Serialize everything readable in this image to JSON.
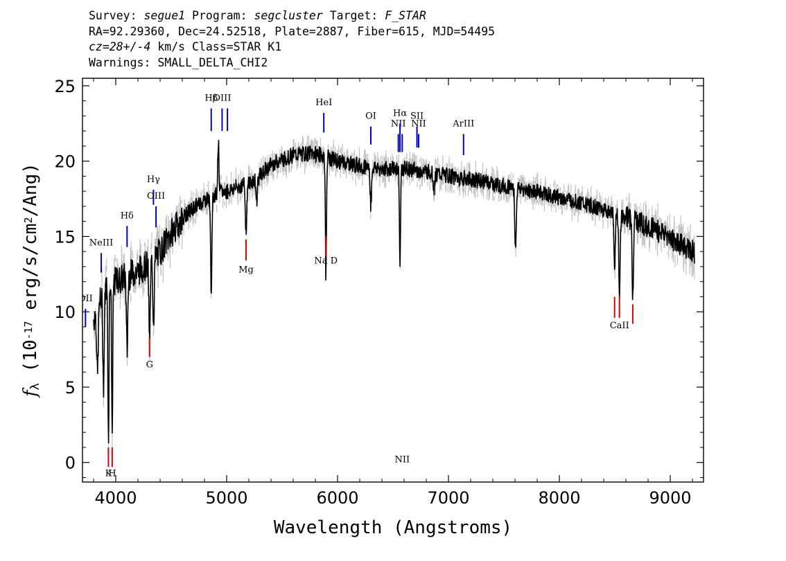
{
  "header": {
    "line1": {
      "survey_label": "Survey:",
      "survey": "segue1",
      "program_label": "Program:",
      "program": "segcluster",
      "target_label": "Target:",
      "target": "F_STAR"
    },
    "line2": "RA=92.29360, Dec=24.52518, Plate=2887, Fiber=615, MJD=54495",
    "line3": {
      "redshift": "cz=28+/-4",
      "unit_and_class": " km/s Class=STAR K1"
    },
    "line4": "Warnings: SMALL_DELTA_CHI2"
  },
  "colors": {
    "flux": "#000000",
    "error_band": "#c0c0c0",
    "emission_lines": "#0000cc",
    "absorption_lines": "#dd0000"
  },
  "chart_data": {
    "type": "line",
    "xlabel": "Wavelength (Angstroms)",
    "ylabel": "f_λ (10^-17 erg/s/cm^2/Ang)",
    "xlim": [
      3700,
      9300
    ],
    "ylim": [
      -1.3,
      25.5
    ],
    "xticks": [
      4000,
      5000,
      6000,
      7000,
      8000,
      9000
    ],
    "yticks": [
      0,
      5,
      10,
      15,
      20,
      25
    ],
    "grid": false,
    "legend": "none",
    "continuum": [
      [
        3800,
        9.5
      ],
      [
        3850,
        10.5
      ],
      [
        3900,
        11.5
      ],
      [
        3950,
        12.0
      ],
      [
        4000,
        12.0
      ],
      [
        4050,
        12.2
      ],
      [
        4100,
        12.4
      ],
      [
        4200,
        12.7
      ],
      [
        4300,
        13.2
      ],
      [
        4400,
        14.0
      ],
      [
        4500,
        15.2
      ],
      [
        4600,
        16.2
      ],
      [
        4700,
        16.9
      ],
      [
        4800,
        17.4
      ],
      [
        4900,
        17.8
      ],
      [
        5000,
        18.0
      ],
      [
        5100,
        18.3
      ],
      [
        5200,
        18.5
      ],
      [
        5300,
        19.0
      ],
      [
        5400,
        19.8
      ],
      [
        5500,
        20.1
      ],
      [
        5600,
        20.4
      ],
      [
        5700,
        20.5
      ],
      [
        5800,
        20.5
      ],
      [
        5900,
        20.3
      ],
      [
        6000,
        20.0
      ],
      [
        6200,
        19.7
      ],
      [
        6400,
        19.5
      ],
      [
        6600,
        19.5
      ],
      [
        6800,
        19.3
      ],
      [
        7000,
        19.0
      ],
      [
        7200,
        18.8
      ],
      [
        7400,
        18.5
      ],
      [
        7600,
        18.2
      ],
      [
        7800,
        18.0
      ],
      [
        8000,
        17.6
      ],
      [
        8200,
        17.2
      ],
      [
        8400,
        16.8
      ],
      [
        8600,
        16.3
      ],
      [
        8800,
        15.7
      ],
      [
        9000,
        14.9
      ],
      [
        9100,
        14.4
      ],
      [
        9200,
        14.0
      ]
    ],
    "absorption_features": [
      {
        "x": 3835,
        "depth": 4.5
      },
      {
        "x": 3890,
        "depth": 6.0
      },
      {
        "x": 3934,
        "depth": 10.0
      },
      {
        "x": 3968,
        "depth": 10.0
      },
      {
        "x": 4102,
        "depth": 5.0
      },
      {
        "x": 4305,
        "depth": 5.0
      },
      {
        "x": 4341,
        "depth": 4.0
      },
      {
        "x": 4861,
        "depth": 6.0
      },
      {
        "x": 5175,
        "depth": 3.0
      },
      {
        "x": 5270,
        "depth": 1.5
      },
      {
        "x": 5895,
        "depth": 8.0
      },
      {
        "x": 6300,
        "depth": 2.5
      },
      {
        "x": 6563,
        "depth": 6.5
      },
      {
        "x": 6870,
        "depth": 1.0
      },
      {
        "x": 7605,
        "depth": 4.0
      },
      {
        "x": 8498,
        "depth": 3.5
      },
      {
        "x": 8542,
        "depth": 5.0
      },
      {
        "x": 8662,
        "depth": 5.0
      },
      {
        "x": 9235,
        "depth": 3.0
      }
    ],
    "emission_features": [
      {
        "x": 4925,
        "height": 3.5
      }
    ],
    "line_markers": [
      {
        "label": "Hβ",
        "x": 4861,
        "color": "blue",
        "label_y": 24.0,
        "y0": 23.5,
        "y1": 22.0
      },
      {
        "label": "OIII",
        "x": 4959,
        "color": "blue",
        "label_y": 24.0,
        "y0": 23.5,
        "y1": 22.0
      },
      {
        "label": "",
        "x": 5007,
        "color": "blue",
        "label_y": 0,
        "y0": 23.5,
        "y1": 22.0
      },
      {
        "label": "HeI",
        "x": 5876,
        "color": "blue",
        "label_y": 23.7,
        "y0": 23.2,
        "y1": 21.9
      },
      {
        "label": "OI",
        "x": 6300,
        "color": "blue",
        "label_y": 22.8,
        "y0": 22.3,
        "y1": 21.1
      },
      {
        "label": "NII",
        "x": 6548,
        "color": "blue",
        "label_y": 22.3,
        "y0": 21.8,
        "y1": 20.6
      },
      {
        "label": "Hα",
        "x": 6563,
        "color": "blue",
        "label_y": 23.0,
        "y0": 22.5,
        "y1": 20.6
      },
      {
        "label": "NII",
        "x": 6583,
        "color": "blue",
        "label_y": 0,
        "y0": 21.8,
        "y1": 20.6
      },
      {
        "label": "SII",
        "x": 6716,
        "color": "blue",
        "label_y": 22.8,
        "y0": 22.3,
        "y1": 20.9
      },
      {
        "label": "NII",
        "x": 6731,
        "color": "blue",
        "label_y": 22.3,
        "y0": 21.8,
        "y1": 20.9
      },
      {
        "label": "ArIII",
        "x": 7136,
        "color": "blue",
        "label_y": 22.3,
        "y0": 21.8,
        "y1": 20.4
      },
      {
        "label": "Hγ",
        "x": 4340,
        "color": "blue",
        "label_y": 18.6,
        "y0": 18.1,
        "y1": 17.1
      },
      {
        "label": "OIII",
        "x": 4363,
        "color": "blue",
        "label_y": 17.5,
        "y0": 17.0,
        "y1": 15.6
      },
      {
        "label": "Hδ",
        "x": 4102,
        "color": "blue",
        "label_y": 16.2,
        "y0": 15.7,
        "y1": 14.3
      },
      {
        "label": "NeIII",
        "x": 3869,
        "color": "blue",
        "label_y": 14.4,
        "y0": 13.9,
        "y1": 12.6
      },
      {
        "label": "OII",
        "x": 3727,
        "color": "blue",
        "label_y": 10.7,
        "y0": 10.2,
        "y1": 9.0
      },
      {
        "label": "Mg",
        "x": 5175,
        "color": "red",
        "label_y": 12.6,
        "y0": 14.8,
        "y1": 13.4
      },
      {
        "label": "Na D",
        "x": 5895,
        "color": "red",
        "label_y": 13.2,
        "y0": 15.0,
        "y1": 13.7
      },
      {
        "label": "G",
        "x": 4305,
        "color": "red",
        "label_y": 6.3,
        "y0": 8.3,
        "y1": 7.0
      },
      {
        "label": "K",
        "x": 3934,
        "color": "red",
        "label_y": -0.9,
        "y0": 1.0,
        "y1": -0.3
      },
      {
        "label": "H",
        "x": 3968,
        "color": "red",
        "label_y": -0.9,
        "y0": 1.0,
        "y1": -0.3
      },
      {
        "label": "CaII",
        "x": 8542,
        "color": "red",
        "label_y": 8.9,
        "y0": 11.0,
        "y1": 9.6
      },
      {
        "label": "",
        "x": 8498,
        "color": "red",
        "label_y": 0,
        "y0": 11.0,
        "y1": 9.6
      },
      {
        "label": "",
        "x": 8662,
        "color": "red",
        "label_y": 0,
        "y0": 10.5,
        "y1": 9.2
      }
    ]
  }
}
